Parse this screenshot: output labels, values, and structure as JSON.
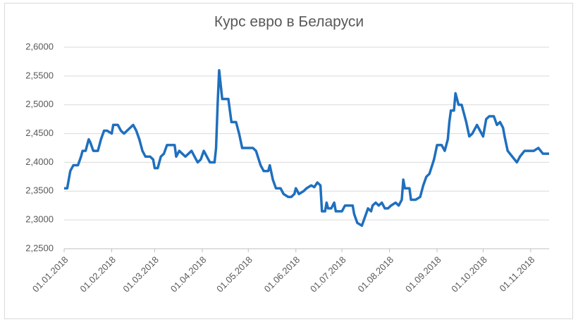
{
  "chart_data": {
    "type": "line",
    "title": "Курс евро в Беларуси",
    "x": [
      "01.01.2018",
      "03.01.2018",
      "05.01.2018",
      "07.01.2018",
      "10.01.2018",
      "12.01.2018",
      "13.01.2018",
      "15.01.2018",
      "17.01.2018",
      "18.01.2018",
      "20.01.2018",
      "23.01.2018",
      "25.01.2018",
      "27.01.2018",
      "29.01.2018",
      "01.02.2018",
      "02.02.2018",
      "05.02.2018",
      "07.02.2018",
      "09.02.2018",
      "11.02.2018",
      "13.02.2018",
      "15.02.2018",
      "17.02.2018",
      "19.02.2018",
      "21.02.2018",
      "23.02.2018",
      "26.02.2018",
      "28.02.2018",
      "01.03.2018",
      "03.03.2018",
      "05.03.2018",
      "07.03.2018",
      "09.03.2018",
      "12.03.2018",
      "14.03.2018",
      "15.03.2018",
      "17.03.2018",
      "19.03.2018",
      "21.03.2018",
      "23.03.2018",
      "25.03.2018",
      "27.03.2018",
      "29.03.2018",
      "31.03.2018",
      "02.04.2018",
      "04.04.2018",
      "06.04.2018",
      "09.04.2018",
      "10.04.2018",
      "11.04.2018",
      "12.04.2018",
      "14.04.2018",
      "18.04.2018",
      "20.04.2018",
      "23.04.2018",
      "25.04.2018",
      "27.04.2018",
      "01.05.2018",
      "04.05.2018",
      "06.05.2018",
      "09.05.2018",
      "11.05.2018",
      "14.05.2018",
      "15.05.2018",
      "17.05.2018",
      "19.05.2018",
      "22.05.2018",
      "24.05.2018",
      "27.05.2018",
      "29.05.2018",
      "31.05.2018",
      "01.06.2018",
      "03.06.2018",
      "06.06.2018",
      "08.06.2018",
      "11.06.2018",
      "13.06.2018",
      "15.06.2018",
      "17.06.2018",
      "18.06.2018",
      "20.06.2018",
      "21.06.2018",
      "22.06.2018",
      "24.06.2018",
      "26.06.2018",
      "27.06.2018",
      "29.06.2018",
      "01.07.2018",
      "03.07.2018",
      "06.07.2018",
      "08.07.2018",
      "09.07.2018",
      "11.07.2018",
      "14.07.2018",
      "16.07.2018",
      "18.07.2018",
      "20.07.2018",
      "21.07.2018",
      "23.07.2018",
      "25.07.2018",
      "27.07.2018",
      "29.07.2018",
      "31.07.2018",
      "02.08.2018",
      "05.08.2018",
      "07.08.2018",
      "09.08.2018",
      "10.08.2018",
      "11.08.2018",
      "14.08.2018",
      "15.08.2018",
      "18.08.2018",
      "21.08.2018",
      "23.08.2018",
      "25.08.2018",
      "27.08.2018",
      "30.08.2018",
      "01.09.2018",
      "04.09.2018",
      "06.09.2018",
      "08.09.2018",
      "09.09.2018",
      "10.09.2018",
      "12.09.2018",
      "13.09.2018",
      "15.09.2018",
      "17.09.2018",
      "20.09.2018",
      "22.09.2018",
      "24.09.2018",
      "27.09.2018",
      "29.09.2018",
      "01.10.2018",
      "03.10.2018",
      "05.10.2018",
      "08.10.2018",
      "10.10.2018",
      "12.10.2018",
      "14.10.2018",
      "15.10.2018",
      "17.10.2018",
      "20.10.2018",
      "23.10.2018",
      "25.10.2018",
      "28.10.2018",
      "01.11.2018",
      "03.11.2018",
      "06.11.2018",
      "09.11.2018",
      "13.11.2018"
    ],
    "series": [
      {
        "name": "Курс евро",
        "color": "#1f6fbe",
        "values": [
          2.355,
          2.355,
          2.385,
          2.395,
          2.395,
          2.41,
          2.42,
          2.42,
          2.44,
          2.435,
          2.42,
          2.42,
          2.44,
          2.455,
          2.455,
          2.45,
          2.465,
          2.465,
          2.455,
          2.45,
          2.455,
          2.46,
          2.465,
          2.455,
          2.44,
          2.42,
          2.41,
          2.41,
          2.405,
          2.39,
          2.39,
          2.41,
          2.415,
          2.43,
          2.43,
          2.43,
          2.41,
          2.42,
          2.415,
          2.41,
          2.415,
          2.42,
          2.41,
          2.4,
          2.405,
          2.42,
          2.41,
          2.4,
          2.4,
          2.425,
          2.5,
          2.56,
          2.51,
          2.51,
          2.47,
          2.47,
          2.45,
          2.425,
          2.425,
          2.425,
          2.42,
          2.395,
          2.385,
          2.385,
          2.395,
          2.37,
          2.355,
          2.355,
          2.345,
          2.34,
          2.34,
          2.345,
          2.355,
          2.345,
          2.35,
          2.355,
          2.36,
          2.357,
          2.365,
          2.36,
          2.315,
          2.315,
          2.33,
          2.32,
          2.32,
          2.33,
          2.315,
          2.315,
          2.315,
          2.325,
          2.325,
          2.325,
          2.31,
          2.295,
          2.29,
          2.305,
          2.32,
          2.315,
          2.325,
          2.33,
          2.325,
          2.33,
          2.32,
          2.32,
          2.325,
          2.33,
          2.325,
          2.335,
          2.37,
          2.355,
          2.355,
          2.335,
          2.335,
          2.34,
          2.36,
          2.375,
          2.38,
          2.405,
          2.43,
          2.43,
          2.42,
          2.44,
          2.47,
          2.49,
          2.49,
          2.52,
          2.5,
          2.5,
          2.47,
          2.445,
          2.45,
          2.465,
          2.455,
          2.445,
          2.475,
          2.48,
          2.48,
          2.465,
          2.47,
          2.46,
          2.445,
          2.42,
          2.41,
          2.4,
          2.41,
          2.42,
          2.42,
          2.42,
          2.425,
          2.415,
          2.415
        ]
      }
    ],
    "xlim": [
      "01.01.2018",
      "13.11.2018"
    ],
    "xticks": [
      "01.01.2018",
      "01.02.2018",
      "01.03.2018",
      "01.04.2018",
      "01.05.2018",
      "01.06.2018",
      "01.07.2018",
      "01.08.2018",
      "01.09.2018",
      "01.10.2018",
      "01.11.2018"
    ],
    "ylim": [
      2.25,
      2.6
    ],
    "yticks": [
      {
        "value": 2.25,
        "label": "2,2500"
      },
      {
        "value": 2.3,
        "label": "2,3000"
      },
      {
        "value": 2.35,
        "label": "2,3500"
      },
      {
        "value": 2.4,
        "label": "2,4000"
      },
      {
        "value": 2.45,
        "label": "2,4500"
      },
      {
        "value": 2.5,
        "label": "2,5000"
      },
      {
        "value": 2.55,
        "label": "2,5500"
      },
      {
        "value": 2.6,
        "label": "2,6000"
      }
    ],
    "grid": true
  }
}
